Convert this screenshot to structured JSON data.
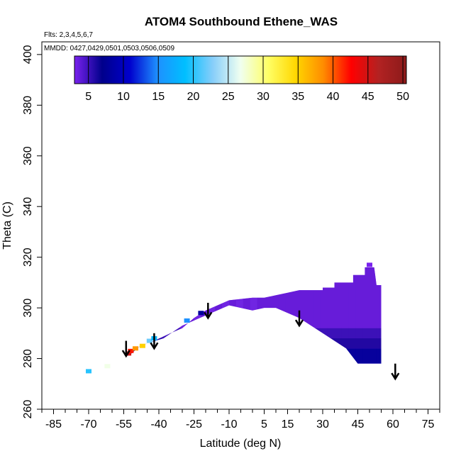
{
  "chart_data": {
    "type": "heatmap",
    "title": "ATOM4 Southbound Ethene_WAS",
    "flights_label": "Flts: 2,3,4,5,6,7",
    "dates_label": "MMDD: 0427,0429,0501,0503,0506,0509",
    "xlabel": "Latitude (deg N)",
    "ylabel": "Theta (C)",
    "xlim": [
      -90,
      80
    ],
    "ylim": [
      260,
      405
    ],
    "x_ticks": [
      -85,
      -70,
      -55,
      -40,
      -25,
      -10,
      5,
      15,
      30,
      45,
      60,
      75
    ],
    "x_tick_labels": [
      "-85",
      "-70",
      "-55",
      "-40",
      "-25",
      "-10",
      "5",
      "15",
      "30",
      "45",
      "60",
      "75"
    ],
    "x_minor_ticks": [
      -90,
      -80,
      -75,
      -65,
      -60,
      -50,
      -45,
      -35,
      -30,
      -20,
      -15,
      -5,
      0,
      10,
      20,
      25,
      35,
      40,
      50,
      55,
      65,
      70,
      80
    ],
    "y_ticks": [
      260,
      280,
      300,
      320,
      340,
      360,
      380,
      400
    ],
    "y_tick_labels": [
      "260",
      "280",
      "300",
      "320",
      "340",
      "360",
      "380",
      "400"
    ],
    "colorbar": {
      "min": 3,
      "max": 50.5,
      "ticks": [
        5,
        10,
        15,
        20,
        25,
        30,
        35,
        40,
        45,
        50
      ],
      "tick_labels": [
        "5",
        "10",
        "15",
        "20",
        "25",
        "30",
        "35",
        "40",
        "45",
        "50"
      ],
      "stops": [
        "#7a22ee",
        "#00008b",
        "#0000cd",
        "#1e90ff",
        "#00bfff",
        "#87cefa",
        "#f0fff0",
        "#ffff66",
        "#ffd700",
        "#ff8c00",
        "#ff0000",
        "#b22222",
        "#8b1a1a"
      ]
    },
    "field_outline": [
      [
        -53,
        281
      ],
      [
        -50,
        284
      ],
      [
        -45,
        286
      ],
      [
        -38,
        288
      ],
      [
        -30,
        293
      ],
      [
        -20,
        297
      ],
      [
        -10,
        301
      ],
      [
        0,
        299
      ],
      [
        5,
        300
      ],
      [
        10,
        300
      ],
      [
        20,
        296
      ],
      [
        30,
        290
      ],
      [
        40,
        284
      ],
      [
        45,
        278
      ],
      [
        55,
        278
      ],
      [
        55,
        309
      ],
      [
        53,
        309
      ],
      [
        52,
        316
      ],
      [
        48,
        316
      ],
      [
        48,
        313
      ],
      [
        43,
        313
      ],
      [
        43,
        310
      ],
      [
        35,
        310
      ],
      [
        35,
        308
      ],
      [
        30,
        308
      ],
      [
        30,
        307
      ],
      [
        20,
        307
      ],
      [
        15,
        306
      ],
      [
        10,
        305
      ],
      [
        5,
        304
      ],
      [
        0,
        304
      ],
      [
        -10,
        303
      ],
      [
        -20,
        299
      ],
      [
        -25,
        296
      ],
      [
        -30,
        292
      ],
      [
        -35,
        290
      ],
      [
        -42,
        287
      ],
      [
        -48,
        285
      ]
    ],
    "bands": [
      {
        "theta_min": 278,
        "theta_max": 284,
        "value": 8
      },
      {
        "theta_min": 284,
        "theta_max": 288,
        "value": 6
      },
      {
        "theta_min": 288,
        "theta_max": 292,
        "value": 5
      },
      {
        "theta_min": 292,
        "theta_max": 318,
        "value": 3.5
      }
    ],
    "points": [
      {
        "lat": -53,
        "theta": 282,
        "value": 45
      },
      {
        "lat": -52,
        "theta": 283,
        "value": 42
      },
      {
        "lat": -50,
        "theta": 284,
        "value": 38
      },
      {
        "lat": -47,
        "theta": 285,
        "value": 35
      },
      {
        "lat": -44,
        "theta": 287,
        "value": 22
      },
      {
        "lat": -42,
        "theta": 288,
        "value": 18
      },
      {
        "lat": -70,
        "theta": 275,
        "value": 20
      },
      {
        "lat": -62,
        "theta": 277,
        "value": 27
      },
      {
        "lat": -28,
        "theta": 295,
        "value": 15
      },
      {
        "lat": -22,
        "theta": 298,
        "value": 8
      },
      {
        "lat": 50,
        "theta": 317,
        "value": 3
      }
    ],
    "arrows": [
      {
        "lat": -54,
        "theta_top": 287,
        "theta_tip": 281
      },
      {
        "lat": -42,
        "theta_top": 290,
        "theta_tip": 284
      },
      {
        "lat": -19,
        "theta_top": 302,
        "theta_tip": 296
      },
      {
        "lat": 20,
        "theta_top": 299,
        "theta_tip": 293
      },
      {
        "lat": 61,
        "theta_top": 278,
        "theta_tip": 272
      }
    ]
  }
}
